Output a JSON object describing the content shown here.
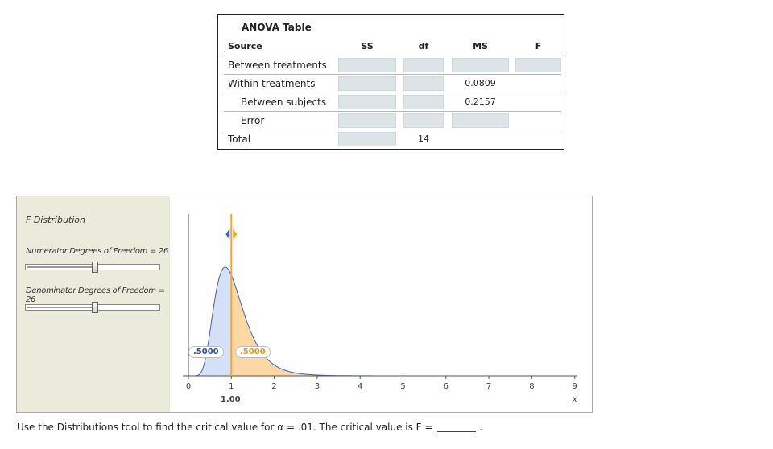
{
  "anova": {
    "title": "ANOVA Table",
    "headers": {
      "source": "Source",
      "ss": "SS",
      "df": "df",
      "ms": "MS",
      "f": "F"
    },
    "rows": [
      {
        "source": "Between treatments",
        "ss": "",
        "df": "",
        "ms": "",
        "f": ""
      },
      {
        "source": "Within treatments",
        "ss": "",
        "df": "",
        "ms": "0.0809"
      },
      {
        "source": "Between subjects",
        "ss": "",
        "df": "",
        "ms": "0.2157"
      },
      {
        "source": "Error",
        "ss": "",
        "df": "",
        "ms": ""
      },
      {
        "source": "Total",
        "ss": "",
        "df": "14"
      }
    ]
  },
  "tool": {
    "title": "F Distribution",
    "numerator_label": "Numerator Degrees of Freedom = 26",
    "numerator_value": 26,
    "denominator_label": "Denominator Degrees of Freedom = 26",
    "denominator_value": 26,
    "left_prob": ".5000",
    "right_prob": ".5000",
    "critical_value": "1.00",
    "colors": {
      "left_area": "#d4e0f5",
      "right_area": "#fcd8a4",
      "curve": "#3a64b8",
      "marker": "#f5a623",
      "handle_left": "#3a64b8"
    }
  },
  "chart_data": {
    "type": "area",
    "x_ticks": [
      "0",
      "1",
      "2",
      "3",
      "4",
      "5",
      "6",
      "7",
      "8",
      "9"
    ],
    "xlabel": "x",
    "xlim": [
      0,
      9
    ],
    "df1": 26,
    "df2": 26,
    "marker_x": 1.0,
    "left_area": 0.5,
    "right_area": 0.5
  },
  "question": {
    "text": "Use the Distributions tool to find the critical value for α = .01. The critical value is F =",
    "suffix": "."
  }
}
